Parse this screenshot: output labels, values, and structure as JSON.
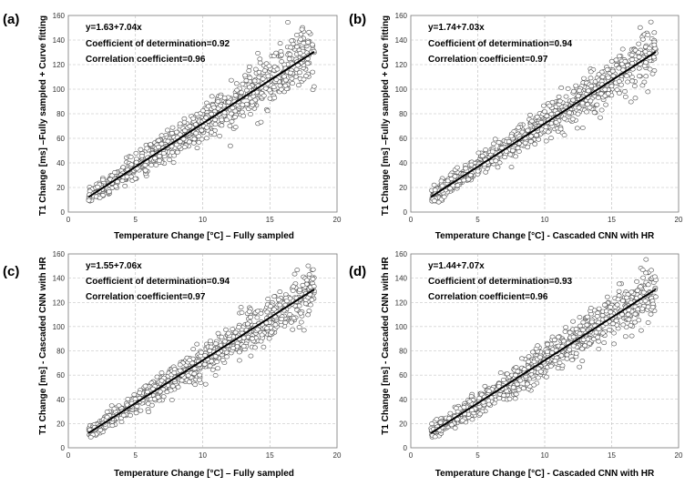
{
  "chart_data": [
    {
      "type": "scatter",
      "panel_label": "(a)",
      "xlabel": "Temperature Change [°C] – Fully sampled",
      "ylabel": "T1 Change [ms] –Fully sampled + Curve fitting",
      "xlim": [
        0,
        20
      ],
      "ylim": [
        0,
        160
      ],
      "xticks": [
        "0",
        "5",
        "10",
        "15",
        "20"
      ],
      "yticks": [
        "0",
        "20",
        "40",
        "60",
        "80",
        "100",
        "120",
        "140",
        "160"
      ],
      "grid": true,
      "fit": {
        "intercept": 1.63,
        "slope": 7.04,
        "x_range": [
          1.5,
          18.3
        ]
      },
      "annotations": [
        "y=1.63+7.04x",
        "Coefficient of determination=0.92",
        "Correlation coefficient=0.96"
      ],
      "points": {
        "n": 900,
        "x_range": [
          1.5,
          18.3
        ],
        "noise_sd_low": 3,
        "noise_sd_high": 12,
        "seed": 11
      }
    },
    {
      "type": "scatter",
      "panel_label": "(b)",
      "xlabel": "Temperature Change [°C] - Cascaded CNN with HR",
      "ylabel": "T1 Change [ms] –Fully sampled + Curve fitting",
      "xlim": [
        0,
        20
      ],
      "ylim": [
        0,
        160
      ],
      "xticks": [
        "0",
        "5",
        "10",
        "15",
        "20"
      ],
      "yticks": [
        "0",
        "20",
        "40",
        "60",
        "80",
        "100",
        "120",
        "140",
        "160"
      ],
      "grid": true,
      "fit": {
        "intercept": 1.74,
        "slope": 7.03,
        "x_range": [
          1.5,
          18.3
        ]
      },
      "annotations": [
        "y=1.74+7.03x",
        "Coefficient of determination=0.94",
        "Correlation coefficient=0.97"
      ],
      "points": {
        "n": 900,
        "x_range": [
          1.5,
          18.3
        ],
        "noise_sd_low": 3,
        "noise_sd_high": 10,
        "seed": 23
      }
    },
    {
      "type": "scatter",
      "panel_label": "(c)",
      "xlabel": "Temperature Change [°C] – Fully sampled",
      "ylabel": "T1 Change [ms] - Cascaded CNN with HR",
      "xlim": [
        0,
        20
      ],
      "ylim": [
        0,
        160
      ],
      "xticks": [
        "0",
        "5",
        "10",
        "15",
        "20"
      ],
      "yticks": [
        "0",
        "20",
        "40",
        "60",
        "80",
        "100",
        "120",
        "140",
        "160"
      ],
      "grid": true,
      "fit": {
        "intercept": 1.55,
        "slope": 7.06,
        "x_range": [
          1.5,
          18.3
        ]
      },
      "annotations": [
        "y=1.55+7.06x",
        "Coefficient of determination=0.94",
        "Correlation coefficient=0.97"
      ],
      "points": {
        "n": 900,
        "x_range": [
          1.5,
          18.3
        ],
        "noise_sd_low": 3,
        "noise_sd_high": 10,
        "seed": 37
      }
    },
    {
      "type": "scatter",
      "panel_label": "(d)",
      "xlabel": "Temperature Change [°C] - Cascaded CNN with HR",
      "ylabel": "T1 Change [ms] - Cascaded CNN with HR",
      "xlim": [
        0,
        20
      ],
      "ylim": [
        0,
        160
      ],
      "xticks": [
        "0",
        "5",
        "10",
        "15",
        "20"
      ],
      "yticks": [
        "0",
        "20",
        "40",
        "60",
        "80",
        "100",
        "120",
        "140",
        "160"
      ],
      "grid": true,
      "fit": {
        "intercept": 1.44,
        "slope": 7.07,
        "x_range": [
          1.5,
          18.3
        ]
      },
      "annotations": [
        "y=1.44+7.07x",
        "Coefficient of determination=0.93",
        "Correlation coefficient=0.96"
      ],
      "points": {
        "n": 900,
        "x_range": [
          1.5,
          18.3
        ],
        "noise_sd_low": 3,
        "noise_sd_high": 11,
        "seed": 53
      }
    }
  ]
}
